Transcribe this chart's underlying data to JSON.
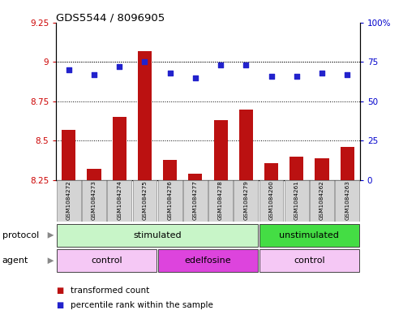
{
  "title": "GDS5544 / 8096905",
  "samples": [
    "GSM1084272",
    "GSM1084273",
    "GSM1084274",
    "GSM1084275",
    "GSM1084276",
    "GSM1084277",
    "GSM1084278",
    "GSM1084279",
    "GSM1084260",
    "GSM1084261",
    "GSM1084262",
    "GSM1084263"
  ],
  "transformed_count": [
    8.57,
    8.32,
    8.65,
    9.07,
    8.38,
    8.29,
    8.63,
    8.7,
    8.36,
    8.4,
    8.39,
    8.46
  ],
  "percentile_rank": [
    70,
    67,
    72,
    75,
    68,
    65,
    73,
    73,
    66,
    66,
    68,
    67
  ],
  "ylim_left": [
    8.25,
    9.25
  ],
  "ylim_right": [
    0,
    100
  ],
  "yticks_left": [
    8.25,
    8.5,
    8.75,
    9.0,
    9.25
  ],
  "yticks_right": [
    0,
    25,
    50,
    75,
    100
  ],
  "ytick_labels_left": [
    "8.25",
    "8.5",
    "8.75",
    "9",
    "9.25"
  ],
  "ytick_labels_right": [
    "0",
    "25",
    "50",
    "75",
    "100%"
  ],
  "bar_color": "#bb1111",
  "dot_color": "#2222cc",
  "bar_baseline": 8.25,
  "protocol_groups": [
    {
      "label": "stimulated",
      "start": 0,
      "end": 7,
      "color": "#c8f5c8"
    },
    {
      "label": "unstimulated",
      "start": 8,
      "end": 11,
      "color": "#44dd44"
    }
  ],
  "agent_groups": [
    {
      "label": "control",
      "start": 0,
      "end": 3,
      "color": "#f5c8f5"
    },
    {
      "label": "edelfosine",
      "start": 4,
      "end": 7,
      "color": "#dd44dd"
    },
    {
      "label": "control",
      "start": 8,
      "end": 11,
      "color": "#f5c8f5"
    }
  ],
  "bg_color": "#ffffff",
  "tick_label_color_left": "#cc0000",
  "tick_label_color_right": "#0000cc",
  "legend_items": [
    {
      "label": "transformed count",
      "color": "#bb1111"
    },
    {
      "label": "percentile rank within the sample",
      "color": "#2222cc"
    }
  ]
}
